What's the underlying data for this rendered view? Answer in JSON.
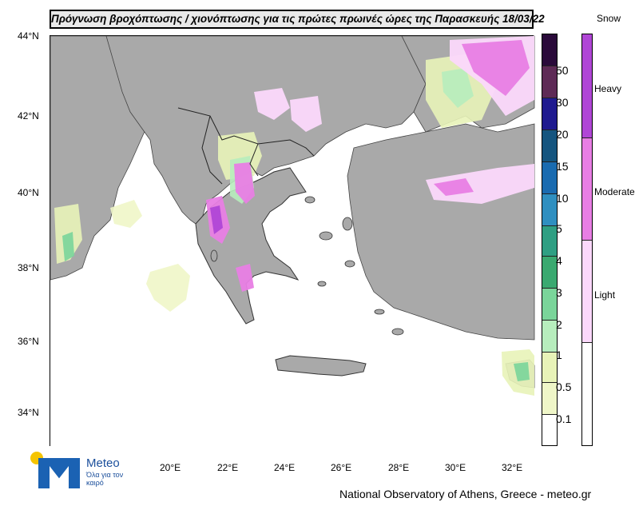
{
  "title": "Πρόγνωση βροχόπτωσης / χιονόπτωσης για τις πρώτες πρωινές ώρες της Παρασκευής 18/03/22",
  "map": {
    "lat_ticks": [
      "44°N",
      "42°N",
      "40°N",
      "38°N",
      "36°N",
      "34°N"
    ],
    "lon_ticks": [
      "20°E",
      "22°E",
      "24°E",
      "26°E",
      "28°E",
      "30°E",
      "32°E"
    ],
    "lat_range": [
      33,
      44
    ],
    "lon_range": [
      16,
      32.5
    ],
    "land_color": "#a9a9a9",
    "sea_color": "#ffffff"
  },
  "rain_legend": {
    "labels": [
      "50",
      "30",
      "20",
      "15",
      "10",
      "5",
      "4",
      "3",
      "2",
      "1",
      "0.5",
      "0.1"
    ],
    "colors": [
      "#2a0a3a",
      "#5e2a56",
      "#1f1a8f",
      "#15557f",
      "#1a6bb0",
      "#2f8fc0",
      "#2f9f83",
      "#3aa970",
      "#7ad59a",
      "#b7edbd",
      "#e8f3b8",
      "#eff6c8",
      "#ffffff"
    ]
  },
  "snow_legend": {
    "title": "Snow",
    "labels": [
      "Heavy",
      "Moderate",
      "Light"
    ],
    "colors": [
      "#b046d6",
      "#e87ee4",
      "#fbd8fb",
      "#ffffff"
    ]
  },
  "logo": {
    "name": "Meteo",
    "tagline": "Όλα για τον καιρό"
  },
  "footer": "National Observatory of Athens, Greece - meteo.gr"
}
